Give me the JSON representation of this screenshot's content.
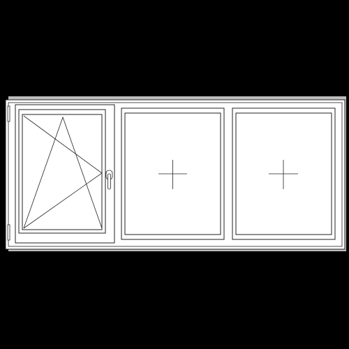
{
  "diagram": {
    "kind": "window-elevation",
    "background_color": "#000000",
    "frame_fill": "#ffffff",
    "shadow_color": "#bdbdbd",
    "line_color": "#222222",
    "sashes": [
      {
        "name": "tilt-turn-sash",
        "opening": "tilt-turn",
        "hinge_side": "left",
        "handle_side": "right"
      },
      {
        "name": "fixed-pane-middle",
        "opening": "fixed"
      },
      {
        "name": "fixed-pane-right",
        "opening": "fixed"
      }
    ]
  }
}
